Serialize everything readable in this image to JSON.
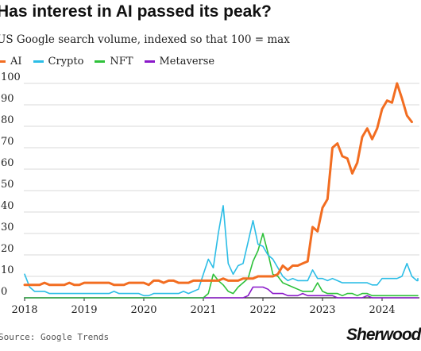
{
  "header": {
    "title": "Has interest in AI passed its peak?",
    "subtitle": "US Google search volume, indexed so that 100 = max"
  },
  "footer": {
    "source": "Source: Google Trends",
    "logo": "Sherwood"
  },
  "chart_data": {
    "type": "line",
    "title": "Has interest in AI passed its peak?",
    "subtitle": "US Google search volume, indexed so that 100 = max",
    "xlabel": "",
    "ylabel": "",
    "ylim": [
      0,
      100
    ],
    "yticks": [
      0,
      10,
      20,
      30,
      40,
      50,
      60,
      70,
      80,
      90,
      100
    ],
    "xticks": [
      "2018",
      "2019",
      "2020",
      "2021",
      "2022",
      "2023",
      "2024"
    ],
    "grid": true,
    "legend_position": "top-left",
    "x_start": "2018-01",
    "series": [
      {
        "name": "AI",
        "color": "#f26d21",
        "values": [
          6,
          6,
          6,
          6,
          7,
          6,
          6,
          6,
          6,
          7,
          6,
          6,
          7,
          7,
          7,
          7,
          7,
          7,
          6,
          6,
          6,
          7,
          7,
          7,
          7,
          6,
          8,
          8,
          7,
          8,
          8,
          7,
          7,
          7,
          8,
          8,
          8,
          8,
          8,
          8,
          9,
          8,
          8,
          8,
          9,
          9,
          9,
          10,
          10,
          10,
          10,
          11,
          15,
          13,
          15,
          15,
          16,
          17,
          33,
          31,
          42,
          46,
          70,
          72,
          66,
          65,
          58,
          63,
          75,
          79,
          74,
          79,
          88,
          92,
          91,
          100,
          93,
          85,
          82
        ]
      },
      {
        "name": "Crypto",
        "color": "#2bbde6",
        "values": [
          11,
          5,
          3,
          3,
          3,
          2,
          2,
          2,
          2,
          2,
          2,
          2,
          2,
          2,
          2,
          2,
          2,
          2,
          3,
          2,
          2,
          2,
          2,
          2,
          1,
          1,
          2,
          2,
          2,
          2,
          2,
          2,
          3,
          2,
          3,
          4,
          11,
          18,
          14,
          30,
          43,
          16,
          11,
          15,
          16,
          26,
          36,
          25,
          24,
          20,
          18,
          14,
          10,
          8,
          9,
          8,
          8,
          8,
          13,
          9,
          9,
          8,
          9,
          8,
          7,
          7,
          7,
          7,
          7,
          7,
          6,
          6,
          9,
          9,
          9,
          9,
          10,
          16,
          10,
          8,
          8,
          9
        ]
      },
      {
        "name": "NFT",
        "color": "#2ec13a",
        "values": [
          0,
          0,
          0,
          0,
          0,
          0,
          0,
          0,
          0,
          0,
          0,
          0,
          0,
          0,
          0,
          0,
          0,
          0,
          0,
          0,
          0,
          0,
          0,
          0,
          0,
          0,
          0,
          0,
          0,
          0,
          0,
          0,
          0,
          0,
          0,
          0,
          0,
          2,
          11,
          8,
          6,
          3,
          2,
          5,
          7,
          9,
          17,
          22,
          30,
          21,
          11,
          10,
          7,
          6,
          5,
          4,
          3,
          3,
          3,
          7,
          3,
          2,
          2,
          2,
          1,
          2,
          2,
          1,
          2,
          2,
          1,
          1,
          1,
          1,
          1,
          1,
          1,
          1,
          1,
          1,
          1,
          1
        ]
      },
      {
        "name": "Metaverse",
        "color": "#8a18c9",
        "values": [
          0,
          0,
          0,
          0,
          0,
          0,
          0,
          0,
          0,
          0,
          0,
          0,
          0,
          0,
          0,
          0,
          0,
          0,
          0,
          0,
          0,
          0,
          0,
          0,
          0,
          0,
          0,
          0,
          0,
          0,
          0,
          0,
          0,
          0,
          0,
          0,
          0,
          0,
          0,
          0,
          0,
          0,
          0,
          0,
          0,
          1,
          5,
          5,
          5,
          4,
          2,
          2,
          2,
          1,
          1,
          1,
          2,
          1,
          1,
          1,
          1,
          1,
          1,
          0,
          0,
          0,
          0,
          0,
          0,
          1,
          0,
          0,
          0,
          0,
          0,
          0,
          0,
          0,
          0,
          0,
          0,
          0
        ]
      }
    ]
  }
}
